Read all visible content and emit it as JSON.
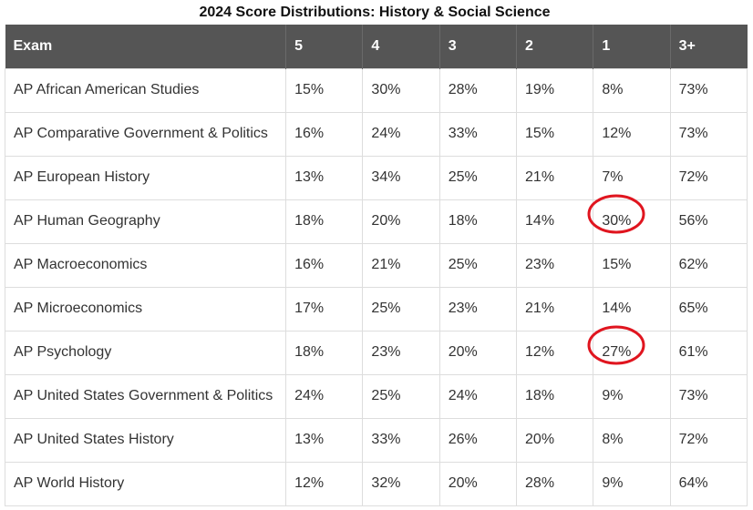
{
  "chart_data": {
    "type": "table",
    "title": "2024 Score Distributions: History & Social Science",
    "columns": [
      "Exam",
      "5",
      "4",
      "3",
      "2",
      "1",
      "3+"
    ],
    "rows": [
      [
        "AP African American Studies",
        "15%",
        "30%",
        "28%",
        "19%",
        "8%",
        "73%"
      ],
      [
        "AP Comparative Government & Politics",
        "16%",
        "24%",
        "33%",
        "15%",
        "12%",
        "73%"
      ],
      [
        "AP European History",
        "13%",
        "34%",
        "25%",
        "21%",
        "7%",
        "72%"
      ],
      [
        "AP Human Geography",
        "18%",
        "20%",
        "18%",
        "14%",
        "30%",
        "56%"
      ],
      [
        "AP Macroeconomics",
        "16%",
        "21%",
        "25%",
        "23%",
        "15%",
        "62%"
      ],
      [
        "AP Microeconomics",
        "17%",
        "25%",
        "23%",
        "21%",
        "14%",
        "65%"
      ],
      [
        "AP Psychology",
        "18%",
        "23%",
        "20%",
        "12%",
        "27%",
        "61%"
      ],
      [
        "AP United States Government & Politics",
        "24%",
        "25%",
        "24%",
        "18%",
        "9%",
        "73%"
      ],
      [
        "AP United States History",
        "13%",
        "33%",
        "26%",
        "20%",
        "8%",
        "72%"
      ],
      [
        "AP World History",
        "12%",
        "32%",
        "20%",
        "28%",
        "9%",
        "64%"
      ]
    ],
    "highlighted_cells": [
      {
        "row": 3,
        "col": 5
      },
      {
        "row": 6,
        "col": 5
      }
    ],
    "header_color": "#555555",
    "highlight_color": "#e0151f"
  }
}
